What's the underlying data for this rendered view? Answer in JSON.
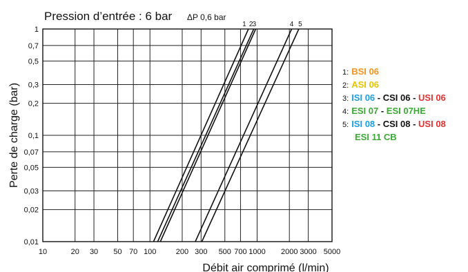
{
  "chart_data": {
    "type": "line",
    "title": "Pression d’entrée : 6 bar",
    "subtitle": "ΔP 0,6 bar",
    "xlabel": "Débit air comprimé (l/min)",
    "ylabel": "Perte de charge (bar)",
    "xscale": "log",
    "yscale": "log",
    "xlim": [
      10,
      5000
    ],
    "ylim": [
      0.01,
      1
    ],
    "grid": true,
    "x_ticks": [
      10,
      20,
      30,
      50,
      70,
      100,
      200,
      300,
      500,
      700,
      1000,
      2000,
      3000,
      5000
    ],
    "x_tick_labels": [
      "10",
      "20",
      "30",
      "50",
      "70",
      "100",
      "200",
      "300",
      "500",
      "700",
      "1000",
      "2000",
      "3000",
      "5000"
    ],
    "y_ticks": [
      0.01,
      0.02,
      0.03,
      0.05,
      0.07,
      0.1,
      0.2,
      0.3,
      0.5,
      0.7,
      1
    ],
    "y_tick_labels": [
      "0,01",
      "0,02",
      "0,03",
      "0,05",
      "0,07",
      "0,1",
      "0,2",
      "0,3",
      "0,5",
      "0,7",
      "1"
    ],
    "series": [
      {
        "name": "1",
        "x": [
          108,
          830
        ],
        "y": [
          0.01,
          1
        ]
      },
      {
        "name": "2",
        "x": [
          118,
          930
        ],
        "y": [
          0.01,
          1
        ]
      },
      {
        "name": "3",
        "x": [
          125,
          970
        ],
        "y": [
          0.01,
          1
        ]
      },
      {
        "name": "4",
        "x": [
          265,
          2100
        ],
        "y": [
          0.01,
          1
        ]
      },
      {
        "name": "5",
        "x": [
          305,
          2450
        ],
        "y": [
          0.01,
          1
        ]
      }
    ],
    "legend": {
      "placement": "right",
      "items": [
        {
          "num": "1:",
          "parts": [
            {
              "text": "BSI 06",
              "color": "#f7941d"
            }
          ]
        },
        {
          "num": "2:",
          "parts": [
            {
              "text": "ASI 06",
              "color": "#e8c400"
            }
          ]
        },
        {
          "num": "3:",
          "parts": [
            {
              "text": "ISI 06",
              "color": "#1ba1e2"
            },
            {
              "text": " - ",
              "color": "#111111"
            },
            {
              "text": "CSI 06",
              "color": "#111111"
            },
            {
              "text": " - ",
              "color": "#111111"
            },
            {
              "text": "USI 06",
              "color": "#e63030"
            }
          ]
        },
        {
          "num": "4:",
          "parts": [
            {
              "text": "ESI 07",
              "color": "#3aaa35"
            },
            {
              "text": " - ",
              "color": "#111111"
            },
            {
              "text": "ESI 07HE",
              "color": "#3aaa35"
            }
          ]
        },
        {
          "num": "5:",
          "parts": [
            {
              "text": "ISI 08",
              "color": "#1ba1e2"
            },
            {
              "text": " - ",
              "color": "#111111"
            },
            {
              "text": "CSI 08",
              "color": "#111111"
            },
            {
              "text": " - ",
              "color": "#111111"
            },
            {
              "text": "USI 08",
              "color": "#e63030"
            }
          ]
        }
      ],
      "continuation": {
        "text": "ESI 11 CB",
        "color": "#3aaa35"
      }
    }
  }
}
